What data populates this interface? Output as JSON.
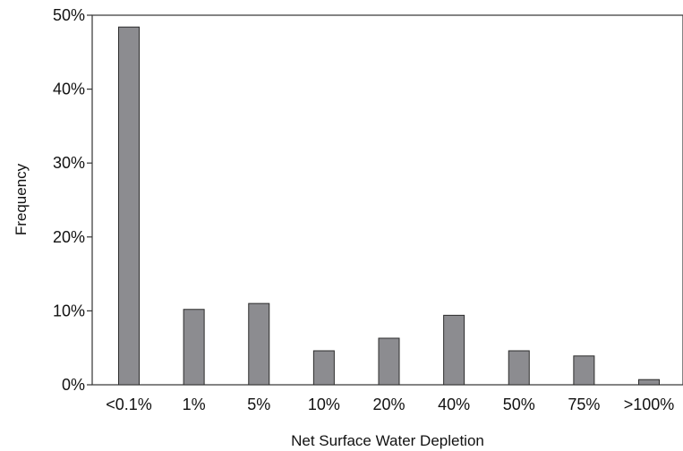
{
  "chart_data": {
    "type": "bar",
    "title": "",
    "xlabel": "Net Surface Water Depletion",
    "ylabel": "Frequency",
    "categories": [
      "<0.1%",
      "1%",
      "5%",
      "10%",
      "20%",
      "40%",
      "50%",
      "75%",
      ">100%"
    ],
    "values": [
      48.4,
      10.2,
      11.0,
      4.6,
      6.3,
      9.4,
      4.6,
      3.9,
      0.7
    ],
    "value_unit": "%",
    "ylim": [
      0,
      50
    ],
    "y_ticks": [
      "0%",
      "10%",
      "20%",
      "30%",
      "40%",
      "50%"
    ],
    "grid": false,
    "legend": "none",
    "colors": {
      "bar_fill": "#8c8c90",
      "bar_stroke": "#2b2b2b",
      "axis": "#333333",
      "text": "#111111"
    }
  }
}
